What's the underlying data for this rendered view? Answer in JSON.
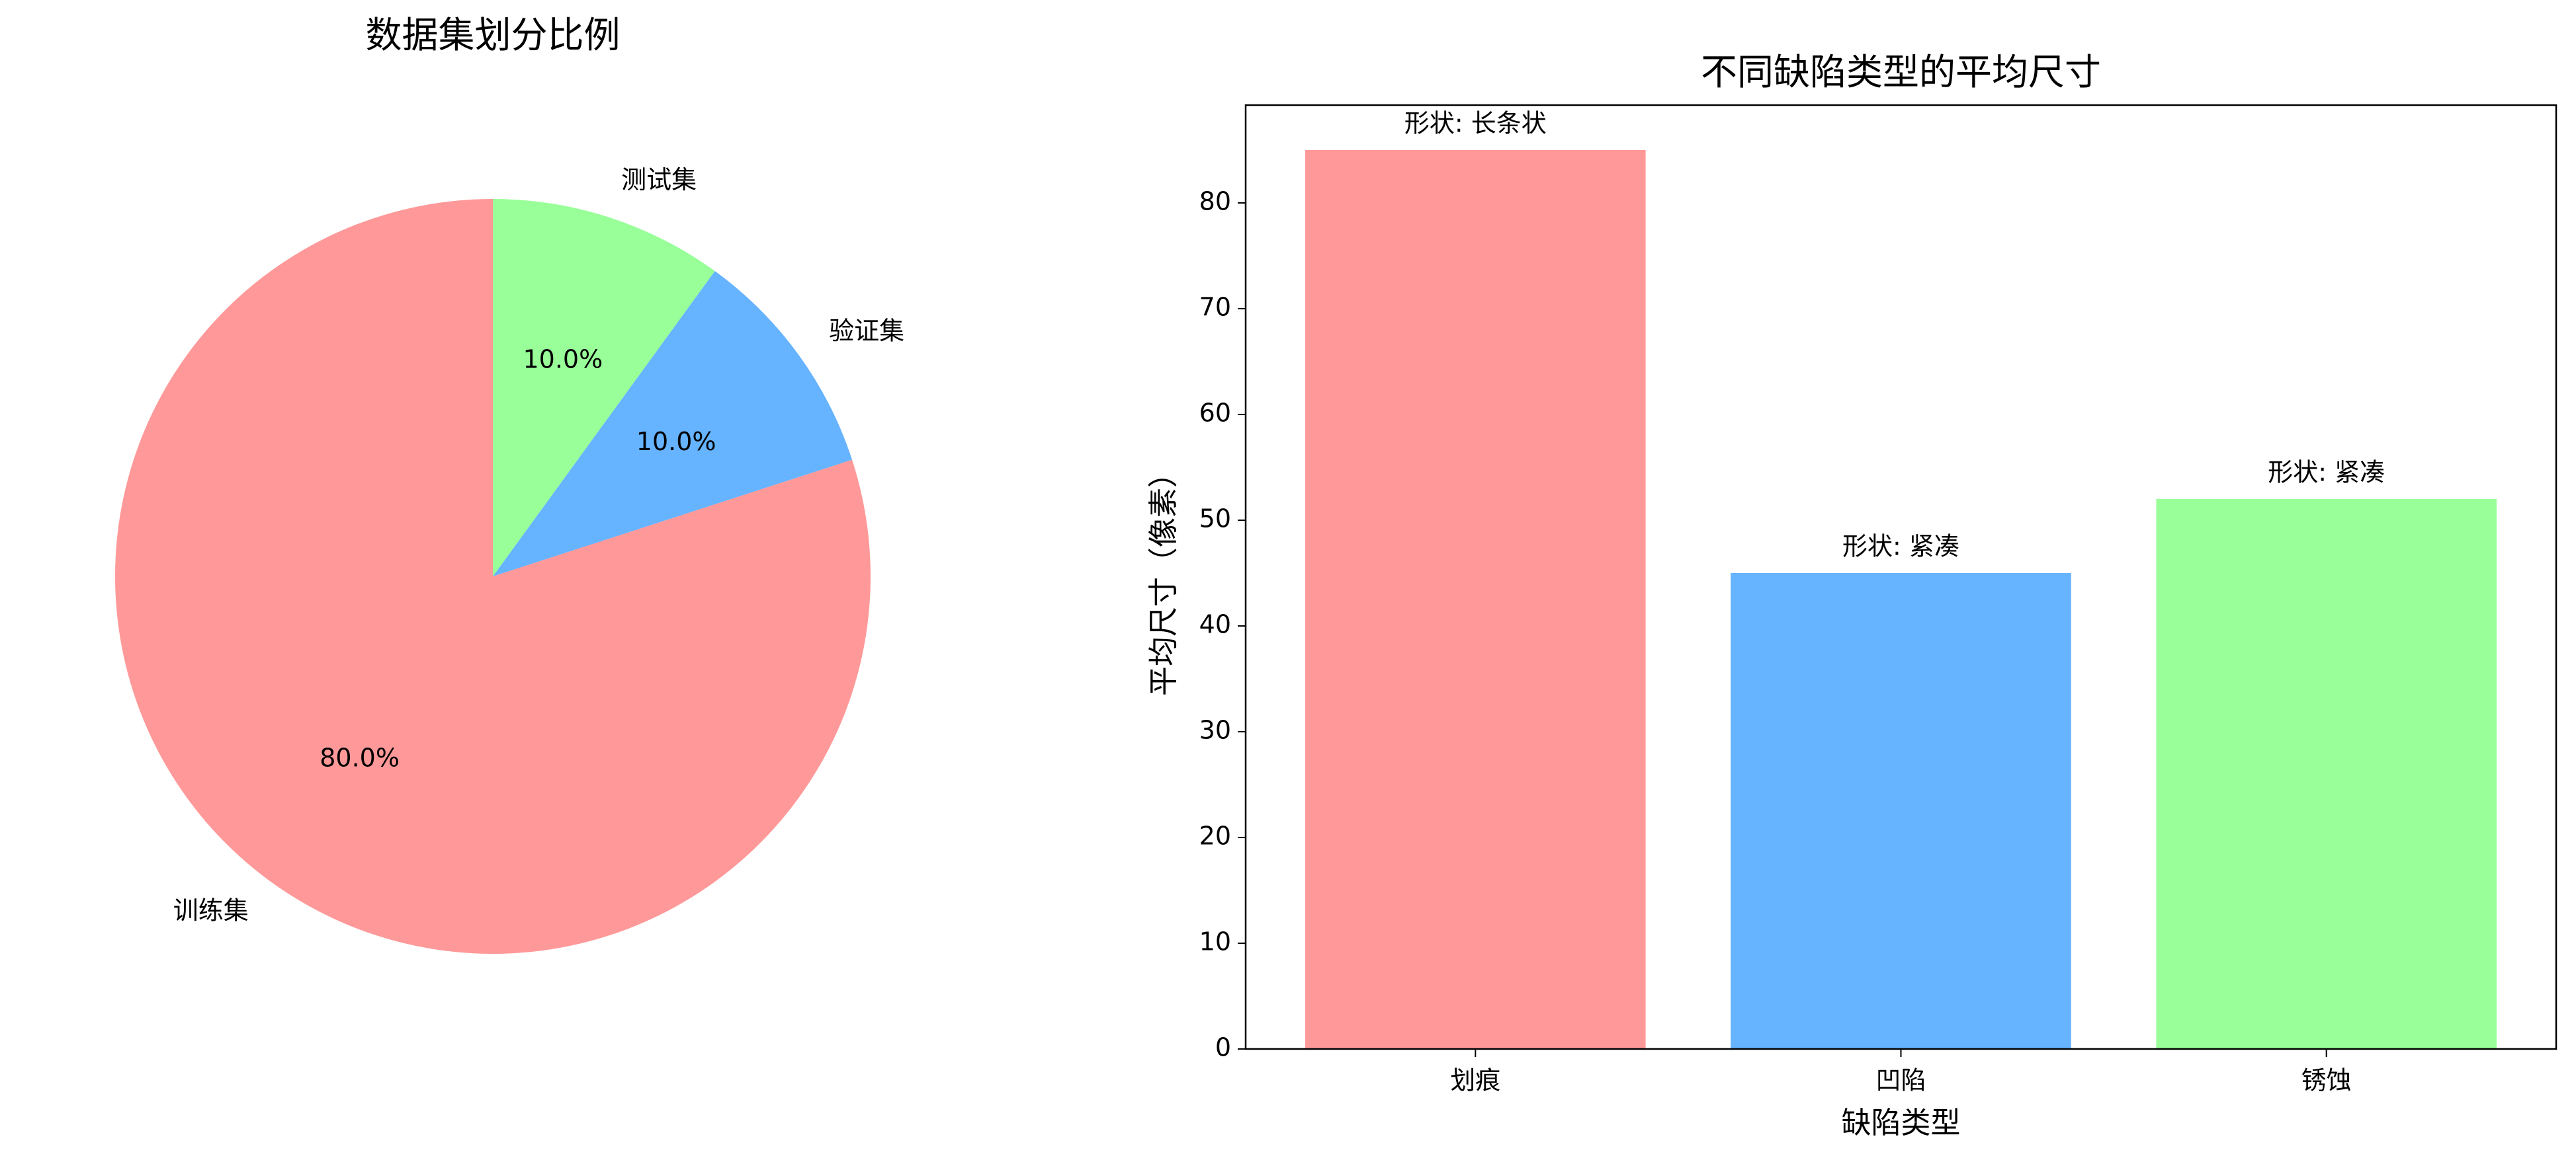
{
  "chart_data": [
    {
      "type": "pie",
      "title": "数据集划分比例",
      "categories": [
        "训练集",
        "验证集",
        "测试集"
      ],
      "values": [
        80,
        10,
        10
      ],
      "value_labels": [
        "80.0%",
        "10.0%",
        "10.0%"
      ],
      "colors": [
        "#ff9999",
        "#66b3ff",
        "#99ff99"
      ]
    },
    {
      "type": "bar",
      "title": "不同缺陷类型的平均尺寸",
      "x_label": "缺陷类型",
      "y_label": "平均尺寸（像素）",
      "categories": [
        "划痕",
        "凹陷",
        "锈蚀"
      ],
      "values": [
        85,
        45,
        52
      ],
      "colors": [
        "#ff9999",
        "#66b3ff",
        "#99ff99"
      ],
      "annotations": [
        "形状: 长条状",
        "形状: 紧凑",
        "形状: 紧凑"
      ],
      "ylim": [
        0,
        89.25
      ],
      "yticks": [
        0,
        10,
        20,
        30,
        40,
        50,
        60,
        70,
        80
      ]
    }
  ]
}
